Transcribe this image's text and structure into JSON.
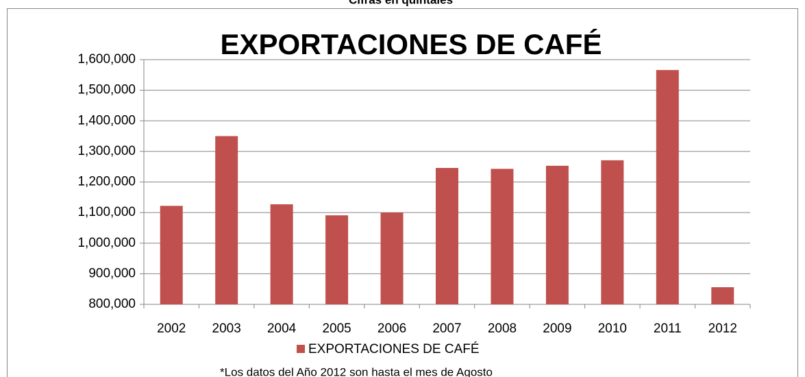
{
  "chart_data": {
    "type": "bar",
    "title": "EXPORTACIONES DE CAFÉ",
    "subtitle": "Cifras en quintales",
    "note": "*Los datos del Año 2012 son hasta el mes de Agosto",
    "categories": [
      "2002",
      "2003",
      "2004",
      "2005",
      "2006",
      "2007",
      "2008",
      "2009",
      "2010",
      "2011",
      "2012"
    ],
    "series": [
      {
        "name": "EXPORTACIONES DE CAFÉ",
        "color": "#c0504d",
        "values": [
          1122000,
          1350000,
          1127000,
          1091000,
          1100000,
          1246000,
          1243000,
          1253000,
          1271000,
          1566000,
          856000
        ]
      }
    ],
    "ylim": [
      800000,
      1600000
    ],
    "yticks": [
      {
        "value": 800000,
        "label": "800,000"
      },
      {
        "value": 900000,
        "label": "900,000"
      },
      {
        "value": 1000000,
        "label": "1,000,000"
      },
      {
        "value": 1100000,
        "label": "1,100,000"
      },
      {
        "value": 1200000,
        "label": "1,200,000"
      },
      {
        "value": 1300000,
        "label": "1,300,000"
      },
      {
        "value": 1400000,
        "label": "1,400,000"
      },
      {
        "value": 1500000,
        "label": "1,500,000"
      },
      {
        "value": 1600000,
        "label": "1,600,000"
      }
    ],
    "grid": true,
    "legend": "bottom"
  }
}
